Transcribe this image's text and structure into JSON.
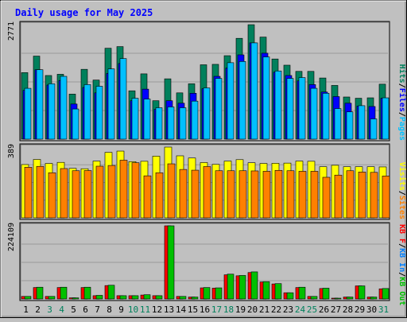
{
  "title": "Daily usage for May 2025",
  "colors": {
    "background": "#c0c0c0",
    "panel_bg": "#c0c0c0",
    "title": "#0000ff",
    "hits": "#00805c",
    "files": "#0000ff",
    "pages": "#00c0ff",
    "visits": "#ffff00",
    "sites": "#ff8000",
    "kbf": "#ff0000",
    "kbin": "#0080ff",
    "kbout": "#00c000"
  },
  "chart_data": {
    "type": "bar",
    "categories": [
      "1",
      "2",
      "3",
      "4",
      "5",
      "6",
      "7",
      "8",
      "9",
      "10",
      "11",
      "12",
      "13",
      "14",
      "15",
      "16",
      "17",
      "18",
      "19",
      "20",
      "21",
      "22",
      "23",
      "24",
      "25",
      "26",
      "27",
      "28",
      "29",
      "30",
      "31"
    ],
    "weekend_days": [
      "3",
      "4",
      "10",
      "11",
      "17",
      "18",
      "24",
      "25",
      "31"
    ],
    "panels": [
      {
        "id": "hits-files-pages",
        "max_label": "2771",
        "ylim": [
          0,
          2771
        ],
        "legend": [
          {
            "label": "Hits",
            "color_key": "hits"
          },
          {
            "label": "Files",
            "color_key": "files"
          },
          {
            "label": "Pages",
            "color_key": "pages"
          }
        ],
        "series": [
          {
            "name": "Hits",
            "color_key": "hits",
            "values": [
              1610,
              2010,
              1540,
              1570,
              1090,
              1690,
              1430,
              2200,
              2240,
              1170,
              1580,
              930,
              1460,
              1120,
              1340,
              1800,
              1810,
              2020,
              2440,
              2770,
              2470,
              1940,
              1790,
              1640,
              1640,
              1480,
              1300,
              1020,
              990,
              1000,
              1330
            ]
          },
          {
            "name": "Files",
            "color_key": "files",
            "values": [
              1180,
              1680,
              1310,
              1420,
              850,
              1250,
              1120,
              1590,
              1830,
              930,
              1210,
              720,
              930,
              870,
              1110,
              1220,
              1520,
              1720,
              2040,
              2330,
              2080,
              1620,
              1540,
              1410,
              1320,
              1140,
              1030,
              870,
              800,
              790,
              990
            ]
          },
          {
            "name": "Pages",
            "color_key": "pages",
            "values": [
              1230,
              1680,
              1340,
              1520,
              730,
              1320,
              1280,
              1700,
              1950,
              990,
              970,
              760,
              780,
              760,
              920,
              1240,
              1470,
              1850,
              1880,
              2330,
              1990,
              1650,
              1470,
              1490,
              1230,
              1110,
              740,
              660,
              810,
              490,
              1000
            ]
          }
        ]
      },
      {
        "id": "visits-sites",
        "max_label": "389",
        "ylim": [
          0,
          389
        ],
        "legend": [
          {
            "label": "Visits",
            "color_key": "visits"
          },
          {
            "label": "Sites",
            "color_key": "sites"
          }
        ],
        "series": [
          {
            "name": "Visits",
            "color_key": "visits",
            "values": [
              293,
              321,
              299,
              305,
              272,
              270,
              312,
              360,
              367,
              309,
              311,
              339,
              389,
              341,
              329,
              304,
              294,
              312,
              320,
              303,
              299,
              300,
              301,
              312,
              311,
              281,
              289,
              281,
              281,
              281,
              280
            ]
          },
          {
            "name": "Sites",
            "color_key": "sites",
            "values": [
              278,
              283,
              248,
              271,
              259,
              260,
              284,
              288,
              317,
              303,
              231,
              248,
              297,
              266,
              262,
              282,
              259,
              259,
              259,
              258,
              256,
              261,
              259,
              256,
              256,
              223,
              235,
              259,
              252,
              250,
              230
            ]
          }
        ]
      },
      {
        "id": "kbf-kbin-kbout",
        "max_label": "224109",
        "ylim": [
          0,
          224109
        ],
        "legend": [
          {
            "label": "KB F",
            "color_key": "kbf"
          },
          {
            "label": "KB In",
            "color_key": "kbin"
          },
          {
            "label": "KB Out",
            "color_key": "kbout"
          }
        ],
        "series": [
          {
            "name": "KB F",
            "color_key": "kbf",
            "values": [
              7800,
              35000,
              7800,
              35000,
              3400,
              35000,
              10000,
              41000,
              10000,
              10000,
              12000,
              10000,
              224109,
              7800,
              5800,
              34000,
              33000,
              74000,
              71000,
              81000,
              52000,
              46000,
              19000,
              35000,
              7800,
              32000,
              2000,
              5800,
              40000,
              5800,
              31000
            ]
          },
          {
            "name": "KB In",
            "color_key": "kbin",
            "values": [
              0,
              0,
              0,
              0,
              0,
              0,
              0,
              0,
              0,
              0,
              0,
              0,
              0,
              0,
              0,
              0,
              0,
              0,
              0,
              0,
              0,
              0,
              0,
              0,
              0,
              0,
              0,
              0,
              0,
              0,
              0
            ]
          },
          {
            "name": "KB Out",
            "color_key": "kbout",
            "values": [
              7800,
              36000,
              7800,
              36000,
              3400,
              36000,
              11000,
              42000,
              10000,
              10000,
              13000,
              10000,
              224109,
              7800,
              5800,
              35000,
              34000,
              76000,
              72000,
              83000,
              53000,
              47000,
              19000,
              36000,
              7800,
              33000,
              2000,
              5800,
              40000,
              5800,
              32000
            ]
          }
        ]
      }
    ]
  }
}
